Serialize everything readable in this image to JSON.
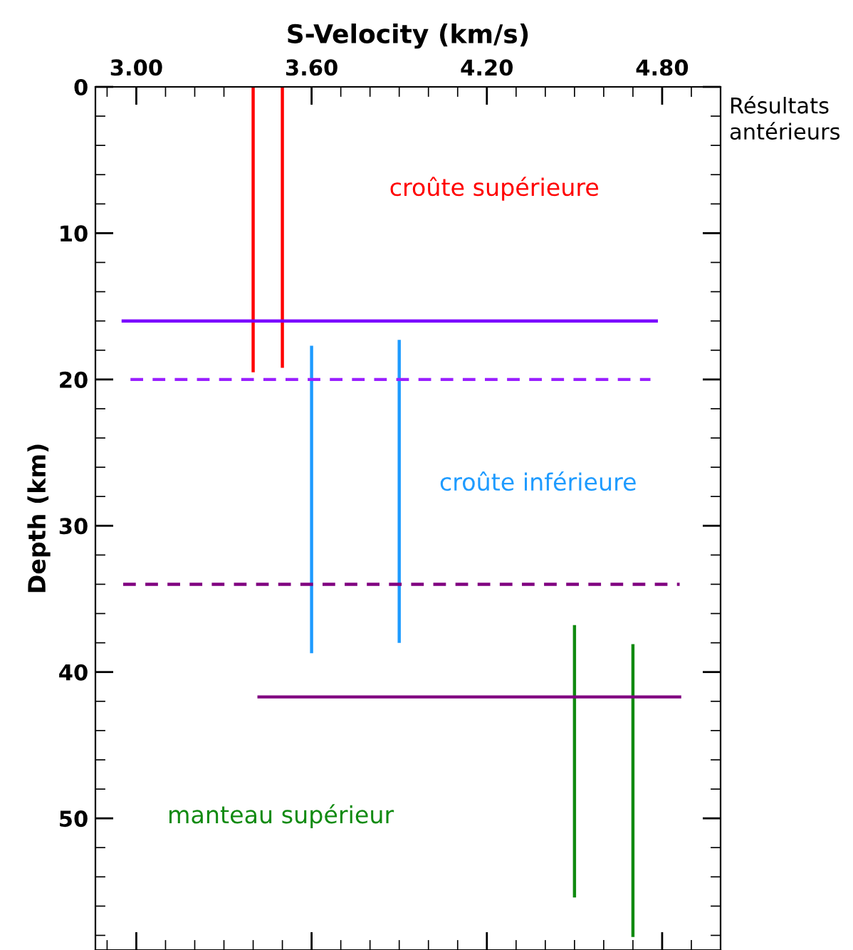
{
  "chart_data": {
    "type": "line",
    "xlabel": "S-Velocity (km/s)",
    "ylabel": "Depth (km)",
    "xlim": [
      2.86,
      5.0
    ],
    "xticks": [
      {
        "value": 3.0,
        "label": "3.00"
      },
      {
        "value": 3.6,
        "label": "3.60"
      },
      {
        "value": 4.2,
        "label": "4.20"
      },
      {
        "value": 4.8,
        "label": "4.80"
      }
    ],
    "ylim": [
      59,
      0
    ],
    "yticks": [
      0,
      10,
      20,
      30,
      40,
      50
    ],
    "grid": false,
    "legend": false,
    "marker": "none",
    "series": [
      {
        "name": "croûte supérieure",
        "color": "#ff0000",
        "x": [
          3.4,
          3.4
        ],
        "values": [
          0,
          19.4
        ]
      },
      {
        "color": "#ff0000",
        "x": [
          3.5,
          3.5
        ],
        "values": [
          0,
          19.1
        ]
      },
      {
        "name": "croûte inférieure",
        "color": "#1e9bff",
        "x": [
          3.6,
          3.6
        ],
        "values": [
          17.8,
          38.6
        ]
      },
      {
        "color": "#1e9bff",
        "x": [
          3.9,
          3.9
        ],
        "values": [
          17.4,
          37.9
        ]
      },
      {
        "name": "manteau supérieur",
        "color": "#108a10",
        "x": [
          4.5,
          4.5
        ],
        "values": [
          36.9,
          55.3
        ]
      },
      {
        "color": "#108a10",
        "x": [
          4.7,
          4.7
        ],
        "values": [
          38.2,
          58.0
        ]
      },
      {
        "color": "#7a00ff",
        "x": [
          2.955,
          4.78
        ],
        "values": [
          16,
          16
        ],
        "line_style": "solid"
      },
      {
        "color": "#9a20ff",
        "x": [
          2.98,
          4.76
        ],
        "values": [
          20,
          20
        ],
        "line_style": "dashed"
      },
      {
        "color": "#800080",
        "x": [
          2.955,
          4.86
        ],
        "values": [
          34,
          34
        ],
        "line_style": "dashed"
      },
      {
        "color": "#800080",
        "x": [
          3.42,
          4.86
        ],
        "values": [
          41.7,
          41.7
        ],
        "line_style": "solid"
      }
    ],
    "annotations": [
      "Résultats antérieurs"
    ]
  }
}
